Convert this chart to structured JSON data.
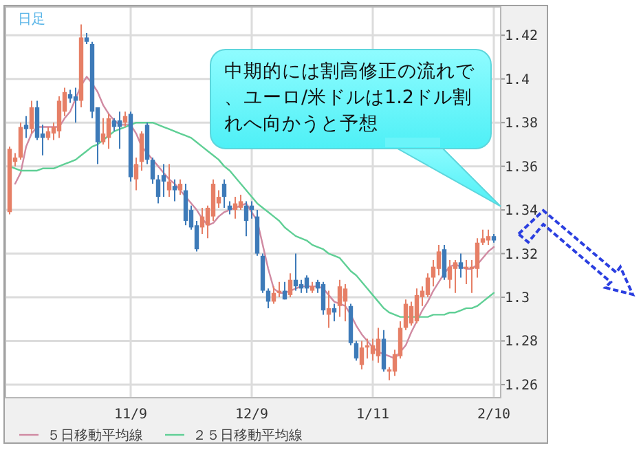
{
  "chart_data": {
    "type": "candlestick",
    "categories": [
      null,
      null,
      null,
      null,
      null,
      null,
      null,
      null,
      null,
      null,
      null,
      null,
      null,
      null,
      null,
      null,
      null,
      null,
      null,
      null,
      null,
      null,
      "11/9",
      null,
      null,
      null,
      null,
      null,
      null,
      null,
      null,
      null,
      null,
      null,
      null,
      null,
      null,
      null,
      null,
      null,
      null,
      null,
      null,
      null,
      "12/9",
      null,
      null,
      null,
      null,
      null,
      null,
      null,
      null,
      null,
      null,
      null,
      null,
      null,
      null,
      null,
      null,
      null,
      null,
      null,
      null,
      null,
      "1/11",
      null,
      null,
      null,
      null,
      null,
      null,
      null,
      null,
      null,
      null,
      null,
      null,
      null,
      null,
      null,
      null,
      null,
      null,
      null,
      null,
      null,
      "2/10"
    ],
    "ohlc": [
      [
        1.339,
        1.369,
        1.338,
        1.368
      ],
      [
        1.362,
        1.366,
        1.36,
        1.364
      ],
      [
        1.364,
        1.38,
        1.363,
        1.378
      ],
      [
        1.379,
        1.383,
        1.373,
        1.377
      ],
      [
        1.377,
        1.39,
        1.375,
        1.387
      ],
      [
        1.387,
        1.39,
        1.372,
        1.373
      ],
      [
        1.375,
        1.379,
        1.365,
        1.373
      ],
      [
        1.373,
        1.378,
        1.372,
        1.376
      ],
      [
        1.375,
        1.38,
        1.372,
        1.378
      ],
      [
        1.376,
        1.392,
        1.373,
        1.39
      ],
      [
        1.385,
        1.396,
        1.383,
        1.394
      ],
      [
        1.393,
        1.395,
        1.389,
        1.391
      ],
      [
        1.392,
        1.396,
        1.38,
        1.39
      ],
      [
        1.39,
        1.425,
        1.387,
        1.419
      ],
      [
        1.419,
        1.421,
        1.416,
        1.417
      ],
      [
        1.416,
        1.417,
        1.382,
        1.385
      ],
      [
        1.387,
        1.387,
        1.361,
        1.371
      ],
      [
        1.371,
        1.382,
        1.37,
        1.375
      ],
      [
        1.373,
        1.384,
        1.368,
        1.382
      ],
      [
        1.381,
        1.382,
        1.376,
        1.378
      ],
      [
        1.381,
        1.385,
        1.368,
        1.378
      ],
      [
        1.38,
        1.385,
        1.378,
        1.383
      ],
      [
        1.384,
        1.385,
        1.353,
        1.355
      ],
      [
        1.354,
        1.364,
        1.349,
        1.361
      ],
      [
        1.362,
        1.376,
        1.358,
        1.375
      ],
      [
        1.379,
        1.38,
        1.361,
        1.363
      ],
      [
        1.363,
        1.364,
        1.352,
        1.354
      ],
      [
        1.354,
        1.356,
        1.343,
        1.346
      ],
      [
        1.356,
        1.361,
        1.346,
        1.353
      ],
      [
        1.349,
        1.361,
        1.346,
        1.353
      ],
      [
        1.351,
        1.354,
        1.344,
        1.349
      ],
      [
        1.349,
        1.354,
        1.347,
        1.352
      ],
      [
        1.349,
        1.352,
        1.333,
        1.335
      ],
      [
        1.34,
        1.342,
        1.331,
        1.332
      ],
      [
        1.333,
        1.335,
        1.321,
        1.322
      ],
      [
        1.332,
        1.341,
        1.329,
        1.337
      ],
      [
        1.333,
        1.342,
        1.327,
        1.341
      ],
      [
        1.337,
        1.354,
        1.335,
        1.352
      ],
      [
        1.343,
        1.349,
        1.341,
        1.346
      ],
      [
        1.352,
        1.354,
        1.341,
        1.346
      ],
      [
        1.342,
        1.344,
        1.338,
        1.34
      ],
      [
        1.34,
        1.346,
        1.336,
        1.343
      ],
      [
        1.341,
        1.347,
        1.34,
        1.344
      ],
      [
        1.342,
        1.344,
        1.328,
        1.335
      ],
      [
        1.342,
        1.344,
        1.336,
        1.34
      ],
      [
        1.337,
        1.34,
        1.319,
        1.32
      ],
      [
        1.319,
        1.32,
        1.302,
        1.303
      ],
      [
        1.303,
        1.304,
        1.295,
        1.298
      ],
      [
        1.298,
        1.305,
        1.297,
        1.302
      ],
      [
        1.302,
        1.307,
        1.3,
        1.303
      ],
      [
        1.303,
        1.307,
        1.299,
        1.299
      ],
      [
        1.301,
        1.311,
        1.3,
        1.308
      ],
      [
        1.308,
        1.32,
        1.303,
        1.305
      ],
      [
        1.306,
        1.308,
        1.302,
        1.304
      ],
      [
        1.309,
        1.31,
        1.302,
        1.304
      ],
      [
        1.303,
        1.307,
        1.302,
        1.305
      ],
      [
        1.307,
        1.308,
        1.302,
        1.304
      ],
      [
        1.306,
        1.307,
        1.292,
        1.294
      ],
      [
        1.292,
        1.303,
        1.286,
        1.295
      ],
      [
        1.295,
        1.297,
        1.289,
        1.293
      ],
      [
        1.296,
        1.308,
        1.291,
        1.305
      ],
      [
        1.298,
        1.306,
        1.289,
        1.304
      ],
      [
        1.296,
        1.297,
        1.278,
        1.279
      ],
      [
        1.279,
        1.28,
        1.271,
        1.272
      ],
      [
        1.269,
        1.28,
        1.267,
        1.277
      ],
      [
        1.277,
        1.281,
        1.272,
        1.278
      ],
      [
        1.274,
        1.281,
        1.271,
        1.278
      ],
      [
        1.273,
        1.286,
        1.27,
        1.281
      ],
      [
        1.281,
        1.285,
        1.266,
        1.267
      ],
      [
        1.266,
        1.268,
        1.262,
        1.267
      ],
      [
        1.266,
        1.276,
        1.264,
        1.274
      ],
      [
        1.273,
        1.289,
        1.272,
        1.286
      ],
      [
        1.286,
        1.299,
        1.285,
        1.297
      ],
      [
        1.288,
        1.298,
        1.287,
        1.296
      ],
      [
        1.289,
        1.304,
        1.288,
        1.301
      ],
      [
        1.3,
        1.305,
        1.296,
        1.303
      ],
      [
        1.301,
        1.311,
        1.3,
        1.309
      ],
      [
        1.309,
        1.317,
        1.305,
        1.314
      ],
      [
        1.313,
        1.324,
        1.31,
        1.321
      ],
      [
        1.322,
        1.324,
        1.308,
        1.309
      ],
      [
        1.308,
        1.317,
        1.304,
        1.314
      ],
      [
        1.313,
        1.317,
        1.302,
        1.316
      ],
      [
        1.316,
        1.32,
        1.309,
        1.313
      ],
      [
        1.313,
        1.317,
        1.306,
        1.314
      ],
      [
        1.313,
        1.317,
        1.302,
        1.314
      ],
      [
        1.313,
        1.327,
        1.309,
        1.325
      ],
      [
        1.325,
        1.331,
        1.324,
        1.327
      ],
      [
        1.326,
        1.331,
        1.324,
        1.328
      ],
      [
        1.328,
        1.329,
        1.325,
        1.326
      ]
    ],
    "colors": [
      "#e67f66",
      "#e67f66",
      "#e67f66",
      "#3d7ab8",
      "#e67f66",
      "#3d7ab8",
      "#3d7ab8",
      "#e67f66",
      "#e67f66",
      "#e67f66",
      "#e67f66",
      "#3d7ab8",
      "#3d7ab8",
      "#e67f66",
      "#3d7ab8",
      "#3d7ab8",
      "#3d7ab8",
      "#e67f66",
      "#e67f66",
      "#3d7ab8",
      "#3d7ab8",
      "#e67f66",
      "#3d7ab8",
      "#e67f66",
      "#e67f66",
      "#3d7ab8",
      "#3d7ab8",
      "#3d7ab8",
      "#3d7ab8",
      "#e67f66",
      "#3d7ab8",
      "#e67f66",
      "#3d7ab8",
      "#3d7ab8",
      "#3d7ab8",
      "#e67f66",
      "#e67f66",
      "#e67f66",
      "#e67f66",
      "#3d7ab8",
      "#3d7ab8",
      "#e67f66",
      "#e67f66",
      "#3d7ab8",
      "#3d7ab8",
      "#3d7ab8",
      "#3d7ab8",
      "#3d7ab8",
      "#e67f66",
      "#e67f66",
      "#3d7ab8",
      "#e67f66",
      "#3d7ab8",
      "#3d7ab8",
      "#3d7ab8",
      "#e67f66",
      "#3d7ab8",
      "#3d7ab8",
      "#e67f66",
      "#3d7ab8",
      "#e67f66",
      "#e67f66",
      "#3d7ab8",
      "#3d7ab8",
      "#e67f66",
      "#e67f66",
      "#e67f66",
      "#e67f66",
      "#3d7ab8",
      "#e67f66",
      "#e67f66",
      "#e67f66",
      "#e67f66",
      "#e67f66",
      "#e67f66",
      "#e67f66",
      "#e67f66",
      "#e67f66",
      "#e67f66",
      "#3d7ab8",
      "#e67f66",
      "#e67f66",
      "#3d7ab8",
      "#e67f66",
      "#e67f66",
      "#e67f66",
      "#e67f66",
      "#e67f66",
      "#3d7ab8"
    ],
    "series": [
      {
        "name": "５日移動平均線",
        "type": "line",
        "color": "#d08aa2",
        "values": [
          null,
          1.352,
          1.357,
          1.369,
          1.375,
          1.378,
          1.378,
          1.378,
          1.378,
          1.378,
          1.382,
          1.385,
          1.391,
          1.397,
          1.401,
          1.398,
          1.394,
          1.388,
          1.384,
          1.381,
          1.379,
          1.379,
          1.379,
          1.375,
          1.369,
          1.366,
          1.363,
          1.36,
          1.357,
          1.354,
          1.352,
          1.349,
          1.346,
          1.343,
          1.34,
          1.336,
          1.333,
          1.334,
          1.337,
          1.339,
          1.34,
          1.341,
          1.342,
          1.343,
          1.339,
          1.335,
          1.324,
          1.313,
          1.304,
          1.302,
          1.302,
          1.303,
          1.304,
          1.305,
          1.305,
          1.305,
          1.305,
          1.304,
          1.301,
          1.298,
          1.297,
          1.296,
          1.292,
          1.287,
          1.283,
          1.28,
          1.277,
          1.275,
          1.274,
          1.273,
          1.272,
          1.275,
          1.278,
          1.284,
          1.289,
          1.294,
          1.298,
          1.303,
          1.307,
          1.311,
          1.314,
          1.315,
          1.314,
          1.313,
          1.313,
          1.315,
          1.318,
          1.321,
          1.323
        ]
      },
      {
        "name": "２５日移動平均線",
        "type": "line",
        "color": "#5fcf95",
        "values": [
          1.36,
          1.359,
          1.358,
          1.358,
          1.358,
          1.358,
          1.359,
          1.359,
          1.359,
          1.36,
          1.361,
          1.362,
          1.363,
          1.365,
          1.367,
          1.369,
          1.37,
          1.372,
          1.374,
          1.376,
          1.377,
          1.378,
          1.379,
          1.38,
          1.38,
          1.38,
          1.38,
          1.379,
          1.378,
          1.377,
          1.376,
          1.375,
          1.374,
          1.373,
          1.371,
          1.369,
          1.367,
          1.365,
          1.363,
          1.36,
          1.358,
          1.355,
          1.352,
          1.349,
          1.346,
          1.343,
          1.341,
          1.339,
          1.337,
          1.335,
          1.332,
          1.33,
          1.328,
          1.327,
          1.326,
          1.324,
          1.323,
          1.322,
          1.32,
          1.319,
          1.318,
          1.315,
          1.312,
          1.31,
          1.307,
          1.304,
          1.301,
          1.298,
          1.295,
          1.293,
          1.292,
          1.291,
          1.291,
          1.291,
          1.291,
          1.291,
          1.291,
          1.292,
          1.292,
          1.292,
          1.293,
          1.293,
          1.294,
          1.295,
          1.295,
          1.296,
          1.298,
          1.3,
          1.302
        ]
      }
    ],
    "ylim": [
      1.254,
      1.433
    ],
    "yticks": [
      1.26,
      1.28,
      1.3,
      1.32,
      1.34,
      1.36,
      1.38,
      1.4,
      1.42
    ],
    "grid": true,
    "legend": "bottom",
    "annotations": [
      "日足",
      "中期的には割高修正の流れで、ユーロ/米ドルは1.2ドル割れへ向かうと予想"
    ]
  }
}
